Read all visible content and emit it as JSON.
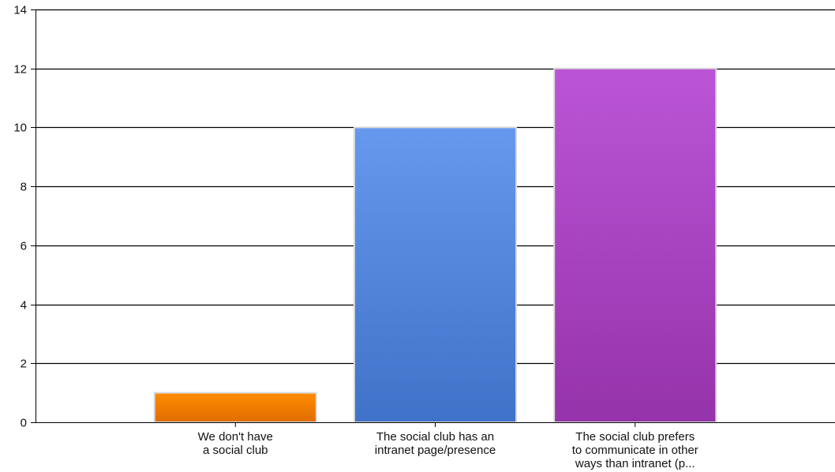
{
  "chart_data": {
    "type": "bar",
    "categories": [
      [
        "We don't have",
        "a social club"
      ],
      [
        "The social club has an",
        "intranet page/presence"
      ],
      [
        "The social club prefers",
        "to communicate in other",
        "ways than intranet (p..."
      ]
    ],
    "values": [
      1,
      10,
      12
    ],
    "colors": [
      {
        "top": "#ff8c00",
        "bottom": "#e06d00"
      },
      {
        "top": "#6699ee",
        "bottom": "#3f72c8"
      },
      {
        "top": "#bb55d6",
        "bottom": "#9533aa"
      }
    ],
    "ylim": [
      0,
      14
    ],
    "yticks": [
      0,
      2,
      4,
      6,
      8,
      10,
      12,
      14
    ],
    "title": "",
    "xlabel": "",
    "ylabel": "",
    "grid": true,
    "legend": "none"
  }
}
